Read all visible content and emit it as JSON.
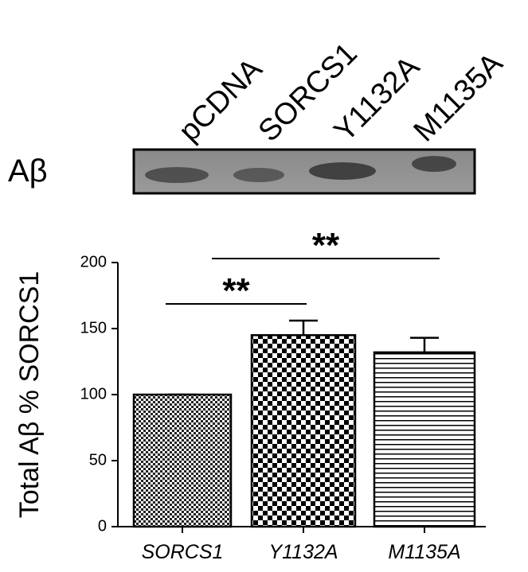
{
  "blot": {
    "label": "Aβ",
    "lanes": [
      "pCDNA",
      "SORCS1",
      "Y1132A",
      "M1135A"
    ]
  },
  "chart_data": {
    "type": "bar",
    "y_label": "Total Aβ % SORCS1",
    "categories": [
      "SORCS1",
      "Y1132A",
      "M1135A"
    ],
    "values": [
      100,
      145,
      132
    ],
    "errors": [
      0,
      11,
      11
    ],
    "color": "#000000",
    "ylim": [
      0,
      200
    ],
    "yticks": [
      0,
      50,
      100,
      150,
      200
    ],
    "significance": [
      {
        "label": "**",
        "pair": [
          "SORCS1",
          "Y1132A"
        ]
      },
      {
        "label": "**",
        "pair": [
          "SORCS1",
          "M1135A"
        ]
      }
    ]
  }
}
